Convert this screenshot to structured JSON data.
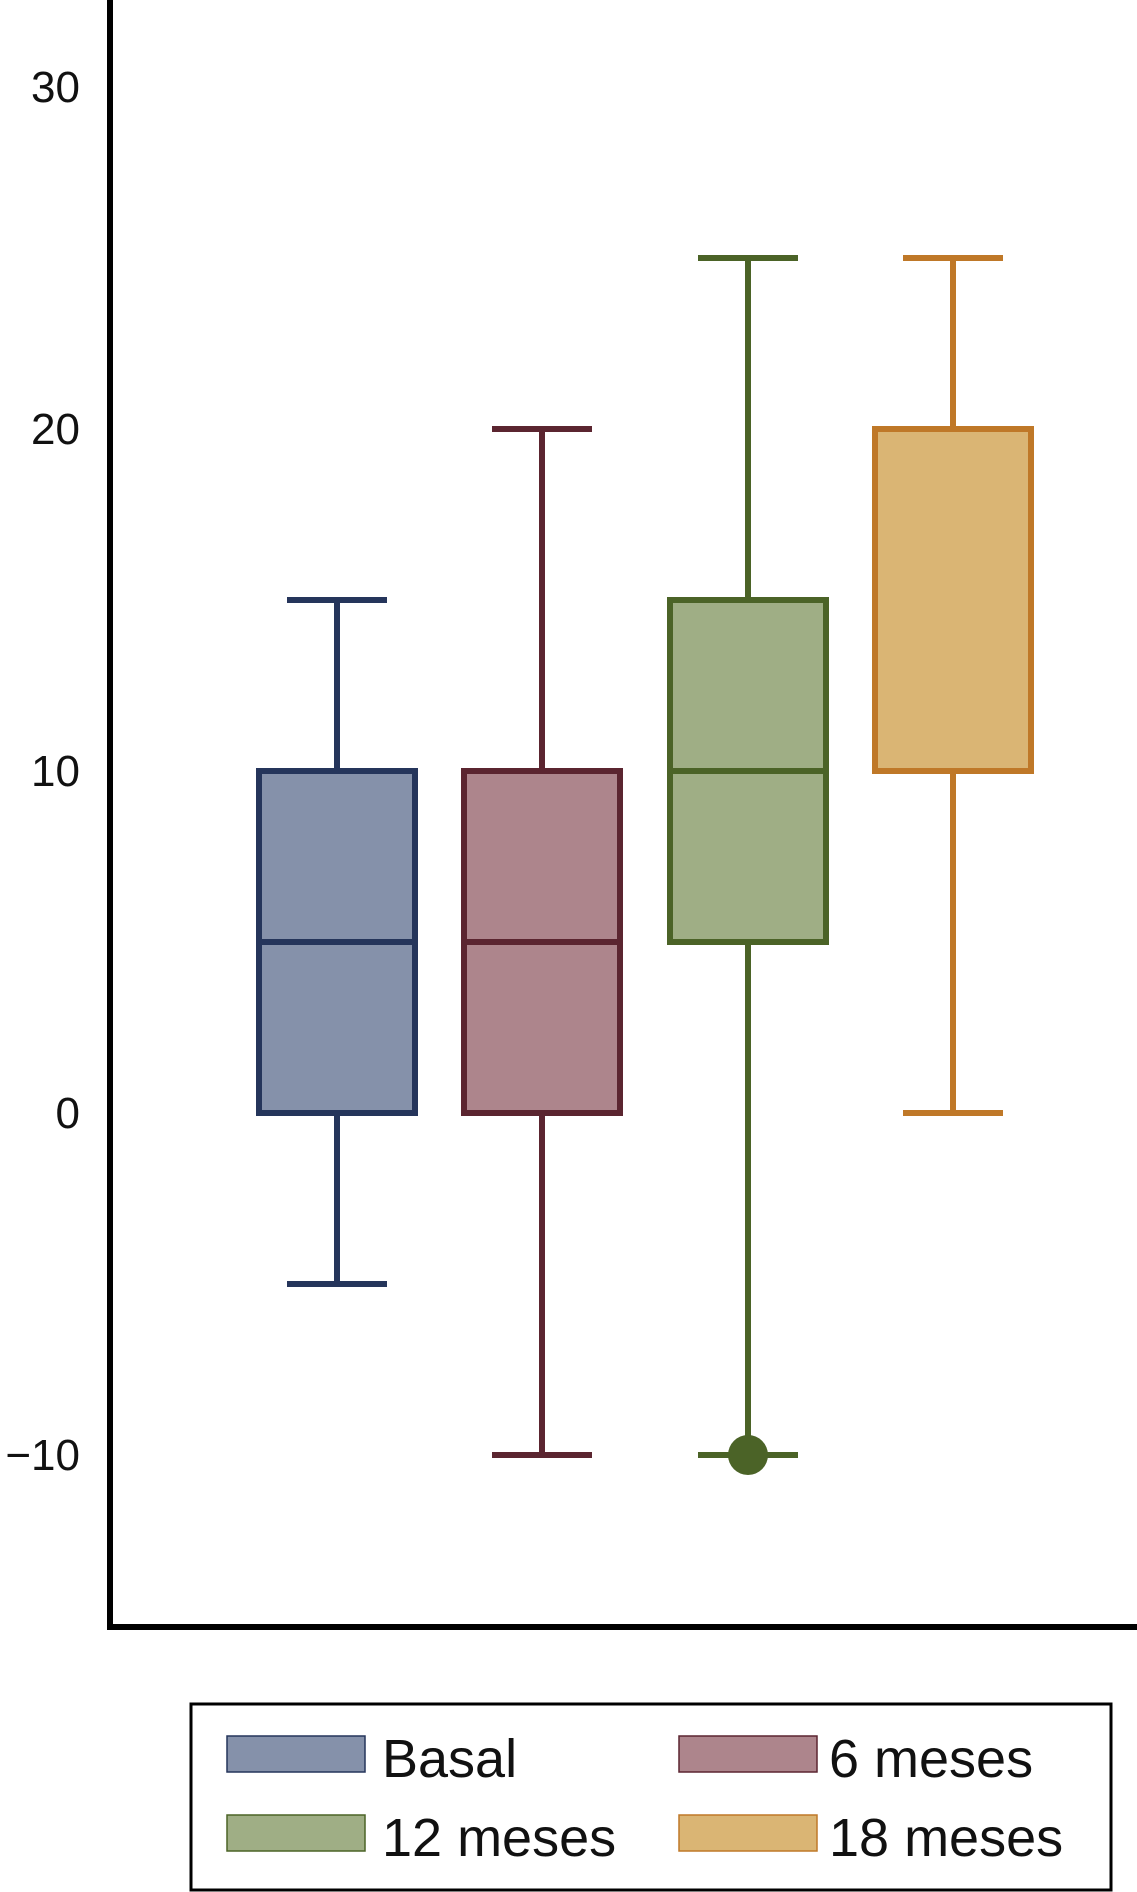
{
  "chart_data": {
    "type": "boxplot",
    "title": "",
    "xlabel": "",
    "ylabel": "",
    "ylim": [
      -14.5,
      31
    ],
    "yticks": [
      -10,
      0,
      10,
      20,
      30
    ],
    "y_tick_labels": [
      "−10",
      "0",
      "10",
      "20",
      "30"
    ],
    "grid": false,
    "legend_position": "bottom",
    "series": [
      {
        "name": "Basal",
        "whisker_low": -5,
        "q1": 0,
        "median": 5,
        "q3": 10,
        "whisker_high": 15,
        "outliers": [],
        "fill": "#8591aa",
        "stroke": "#25355b"
      },
      {
        "name": "6 meses",
        "whisker_low": -10,
        "q1": 0,
        "median": 5,
        "q3": 10,
        "whisker_high": 20,
        "outliers": [],
        "fill": "#ad858c",
        "stroke": "#5b2530"
      },
      {
        "name": "12 meses",
        "whisker_low": -10,
        "q1": 5,
        "median": 10,
        "q3": 15,
        "whisker_high": 25,
        "outliers": [
          -10
        ],
        "fill": "#9fae85",
        "stroke": "#4b6327"
      },
      {
        "name": "18 meses",
        "whisker_low": 0,
        "q1": 10,
        "median": 10,
        "q3": 20,
        "whisker_high": 25,
        "outliers": [],
        "fill": "#dab574",
        "stroke": "#bf7828"
      }
    ]
  }
}
